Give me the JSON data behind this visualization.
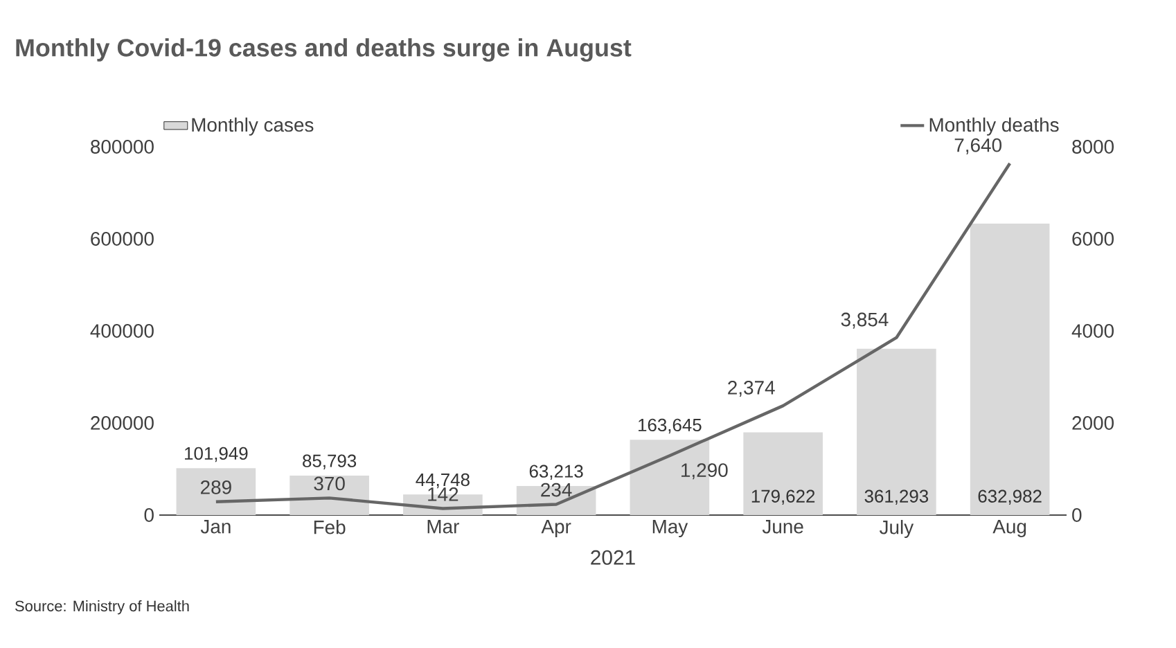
{
  "chart_data": {
    "type": "bar",
    "title": "Monthly Covid-19 cases and deaths surge in August",
    "xlabel": "2021",
    "categories": [
      "Jan",
      "Feb",
      "Mar",
      "Apr",
      "May",
      "June",
      "July",
      "Aug"
    ],
    "series": [
      {
        "name": "Monthly cases",
        "color": "#d9d9d9",
        "values": [
          101949,
          85793,
          44748,
          63213,
          163645,
          179622,
          361293,
          632982
        ],
        "value_labels": [
          "101,949",
          "85,793",
          "44,748",
          "63,213",
          "163,645",
          "179,622",
          "361,293",
          "632,982"
        ]
      },
      {
        "name": "Monthly deaths",
        "type": "line",
        "axis": "y2",
        "color": "#666666",
        "values": [
          289,
          370,
          142,
          234,
          1290,
          2374,
          3854,
          7640
        ],
        "value_labels": [
          "289",
          "370",
          "142",
          "234",
          "1,290",
          "2,374",
          "3,854",
          "7,640"
        ]
      }
    ],
    "ylim": [
      0,
      800000
    ],
    "yticks": [
      0,
      200000,
      400000,
      600000,
      800000
    ],
    "y2lim": [
      0,
      8000
    ],
    "y2ticks": [
      0,
      2000,
      4000,
      6000,
      8000
    ],
    "legend": "top",
    "annotations": [
      "Source: Ministry of Health"
    ]
  }
}
